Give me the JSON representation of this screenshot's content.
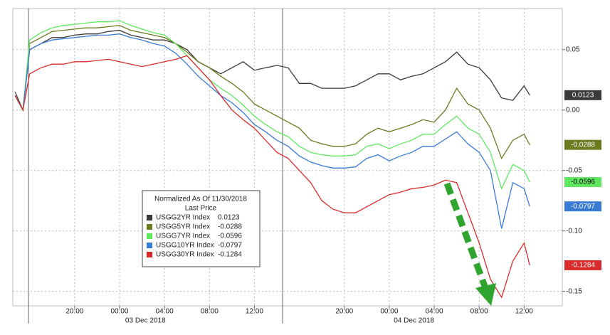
{
  "chart_data": {
    "type": "line",
    "legend_title": "Normalized As Of 11/30/2018",
    "legend_subtitle": "Last Price",
    "x": [
      -9.3,
      -8.6,
      -8,
      -7,
      -6,
      -5,
      -4,
      -3,
      -2,
      -1,
      0,
      1,
      2,
      3,
      4,
      5,
      6,
      7,
      8,
      9,
      10,
      11,
      12,
      13,
      14,
      15,
      16,
      17,
      18,
      19,
      20,
      21,
      22,
      23,
      24,
      25,
      26,
      27,
      28,
      29,
      30,
      31,
      32,
      33,
      34,
      35,
      36,
      36.5
    ],
    "xlim": [
      -9.5,
      39.4
    ],
    "xticks": [
      {
        "value": -4,
        "label": "20:00"
      },
      {
        "value": 0,
        "label": "00:00"
      },
      {
        "value": 4,
        "label": "04:00"
      },
      {
        "value": 8,
        "label": "08:00"
      },
      {
        "value": 12,
        "label": "12:00"
      },
      {
        "value": 20,
        "label": "20:00"
      },
      {
        "value": 24,
        "label": "00:00"
      },
      {
        "value": 28,
        "label": "04:00"
      },
      {
        "value": 32,
        "label": "08:00"
      },
      {
        "value": 36,
        "label": "12:00"
      }
    ],
    "x_date_labels": [
      {
        "value": 2.3,
        "label": "03 Dec 2018"
      },
      {
        "value": 26.2,
        "label": "04 Dec 2018"
      }
    ],
    "ylim": [
      -0.162,
      0.084
    ],
    "yticks": [
      0.05,
      {
        "value": 0,
        "label": "0.00"
      },
      -0.05,
      {
        "value": -0.1,
        "label": "-0.10"
      },
      -0.15
    ],
    "grid": true,
    "series": [
      {
        "name": "USGG2YR Index",
        "last_price": 0.0123,
        "color": "#3a3a3a",
        "tag_text": "#ffffff",
        "values": [
          0.015,
          0.0,
          0.05,
          0.055,
          0.06,
          0.06,
          0.062,
          0.063,
          0.063,
          0.065,
          0.066,
          0.062,
          0.06,
          0.058,
          0.058,
          0.055,
          0.05,
          0.04,
          0.035,
          0.03,
          0.035,
          0.04,
          0.033,
          0.035,
          0.037,
          0.035,
          0.022,
          0.022,
          0.018,
          0.018,
          0.018,
          0.02,
          0.025,
          0.03,
          0.03,
          0.025,
          0.028,
          0.03,
          0.035,
          0.04,
          0.048,
          0.038,
          0.035,
          0.025,
          0.01,
          0.008,
          0.02,
          0.0123
        ]
      },
      {
        "name": "USGG5YR Index",
        "last_price": -0.0288,
        "color": "#6b7a1f",
        "tag_text": "#ffffff",
        "values": [
          0.012,
          0.0,
          0.055,
          0.06,
          0.065,
          0.066,
          0.067,
          0.068,
          0.068,
          0.069,
          0.07,
          0.066,
          0.064,
          0.062,
          0.06,
          0.055,
          0.048,
          0.04,
          0.035,
          0.028,
          0.022,
          0.015,
          0.005,
          0.0,
          -0.005,
          -0.01,
          -0.015,
          -0.025,
          -0.028,
          -0.03,
          -0.03,
          -0.028,
          -0.02,
          -0.015,
          -0.018,
          -0.015,
          -0.012,
          -0.008,
          -0.01,
          0.0,
          0.018,
          0.005,
          0.0,
          -0.015,
          -0.04,
          -0.025,
          -0.02,
          -0.0288
        ]
      },
      {
        "name": "USGG7YR Index",
        "last_price": -0.0596,
        "color": "#5fe85f",
        "tag_text": "#000000",
        "values": [
          0.012,
          0.0,
          0.058,
          0.064,
          0.068,
          0.07,
          0.071,
          0.072,
          0.073,
          0.073,
          0.074,
          0.07,
          0.067,
          0.064,
          0.062,
          0.055,
          0.045,
          0.035,
          0.025,
          0.018,
          0.012,
          0.004,
          -0.005,
          -0.012,
          -0.018,
          -0.022,
          -0.03,
          -0.035,
          -0.037,
          -0.038,
          -0.038,
          -0.037,
          -0.03,
          -0.028,
          -0.032,
          -0.028,
          -0.025,
          -0.02,
          -0.02,
          -0.012,
          -0.005,
          -0.015,
          -0.02,
          -0.035,
          -0.065,
          -0.045,
          -0.05,
          -0.0596
        ]
      },
      {
        "name": "USGG10YR Index",
        "last_price": -0.0797,
        "color": "#3a7bd5",
        "tag_text": "#ffffff",
        "values": [
          0.012,
          0.0,
          0.05,
          0.055,
          0.058,
          0.059,
          0.06,
          0.061,
          0.062,
          0.062,
          0.063,
          0.06,
          0.058,
          0.055,
          0.053,
          0.047,
          0.038,
          0.028,
          0.02,
          0.012,
          0.006,
          -0.002,
          -0.012,
          -0.018,
          -0.025,
          -0.03,
          -0.038,
          -0.043,
          -0.046,
          -0.048,
          -0.048,
          -0.047,
          -0.04,
          -0.037,
          -0.042,
          -0.038,
          -0.035,
          -0.03,
          -0.03,
          -0.024,
          -0.018,
          -0.028,
          -0.035,
          -0.05,
          -0.098,
          -0.06,
          -0.065,
          -0.0797
        ]
      },
      {
        "name": "USGG30YR Index",
        "last_price": -0.1284,
        "color": "#d92b2b",
        "tag_text": "#ffffff",
        "values": [
          0.012,
          0.0,
          0.03,
          0.035,
          0.038,
          0.038,
          0.04,
          0.04,
          0.041,
          0.042,
          0.04,
          0.038,
          0.036,
          0.038,
          0.04,
          0.042,
          0.045,
          0.035,
          0.025,
          0.012,
          0.0,
          -0.008,
          -0.015,
          -0.025,
          -0.035,
          -0.04,
          -0.05,
          -0.06,
          -0.075,
          -0.082,
          -0.085,
          -0.085,
          -0.08,
          -0.075,
          -0.07,
          -0.068,
          -0.065,
          -0.064,
          -0.062,
          -0.058,
          -0.06,
          -0.085,
          -0.11,
          -0.14,
          -0.155,
          -0.125,
          -0.11,
          -0.1284
        ]
      }
    ]
  }
}
